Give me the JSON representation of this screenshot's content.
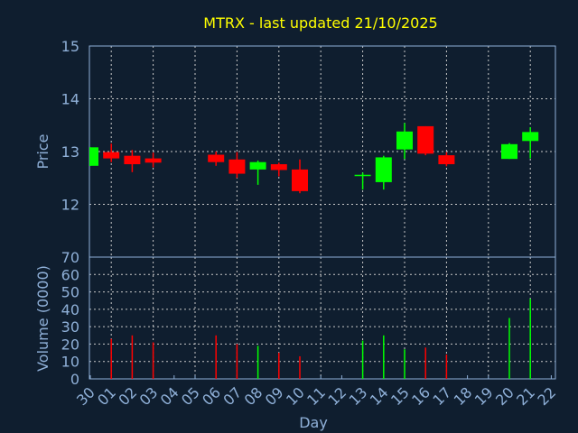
{
  "chart_data": {
    "type": "candlestick",
    "title": "MTRX - last updated 21/10/2025",
    "xlabel": "Day",
    "price_panel": {
      "ylabel": "Price",
      "ylim": [
        11,
        15
      ],
      "yticks": [
        "15",
        "14",
        "13",
        "12"
      ],
      "ytick_values": [
        15,
        14,
        13,
        12
      ],
      "grid": true
    },
    "volume_panel": {
      "ylabel": "Volume (0000)",
      "ylim": [
        0,
        70
      ],
      "yticks": [
        "70",
        "60",
        "50",
        "40",
        "30",
        "20",
        "10",
        "0"
      ],
      "ytick_values": [
        70,
        60,
        50,
        40,
        30,
        20,
        10,
        0
      ],
      "grid": true
    },
    "x_ticks": [
      "30",
      "01",
      "02",
      "03",
      "04",
      "05",
      "06",
      "07",
      "08",
      "09",
      "10",
      "11",
      "12",
      "13",
      "14",
      "15",
      "16",
      "17",
      "18",
      "19",
      "20",
      "21",
      "22"
    ],
    "colors": {
      "up": "#00ff00",
      "down": "#ff0000",
      "background": "#0f1e2f",
      "title": "#ffff00",
      "axis": "#8fb0d8"
    },
    "candles": [
      {
        "day": "30",
        "open": 12.73,
        "high": 13.08,
        "low": 12.73,
        "close": 13.08,
        "volume": null
      },
      {
        "day": "01",
        "open": 12.99,
        "high": 13.15,
        "low": 12.8,
        "close": 12.87,
        "volume": 23
      },
      {
        "day": "02",
        "open": 12.92,
        "high": 13.03,
        "low": 12.61,
        "close": 12.76,
        "volume": 25
      },
      {
        "day": "03",
        "open": 12.87,
        "high": 12.98,
        "low": 12.7,
        "close": 12.79,
        "volume": 21
      },
      {
        "day": "06",
        "open": 12.94,
        "high": 13.0,
        "low": 12.73,
        "close": 12.8,
        "volume": 25
      },
      {
        "day": "07",
        "open": 12.85,
        "high": 12.99,
        "low": 12.5,
        "close": 12.58,
        "volume": 20
      },
      {
        "day": "08",
        "open": 12.66,
        "high": 12.83,
        "low": 12.37,
        "close": 12.8,
        "volume": 19
      },
      {
        "day": "09",
        "open": 12.76,
        "high": 12.79,
        "low": 12.53,
        "close": 12.65,
        "volume": 15
      },
      {
        "day": "10",
        "open": 12.66,
        "high": 12.85,
        "low": 12.21,
        "close": 12.25,
        "volume": 13
      },
      {
        "day": "13",
        "open": 12.55,
        "high": 12.6,
        "low": 12.28,
        "close": 12.56,
        "volume": 22
      },
      {
        "day": "14",
        "open": 12.42,
        "high": 12.92,
        "low": 12.28,
        "close": 12.89,
        "volume": 25
      },
      {
        "day": "15",
        "open": 13.04,
        "high": 13.54,
        "low": 12.86,
        "close": 13.38,
        "volume": 17
      },
      {
        "day": "16",
        "open": 13.48,
        "high": 13.48,
        "low": 12.93,
        "close": 12.96,
        "volume": 18
      },
      {
        "day": "17",
        "open": 12.93,
        "high": 12.99,
        "low": 12.72,
        "close": 12.76,
        "volume": 14
      },
      {
        "day": "20",
        "open": 12.86,
        "high": 13.16,
        "low": 12.86,
        "close": 13.14,
        "volume": 35
      },
      {
        "day": "21",
        "open": 13.2,
        "high": 13.46,
        "low": 12.87,
        "close": 13.37,
        "volume": 46
      }
    ]
  }
}
